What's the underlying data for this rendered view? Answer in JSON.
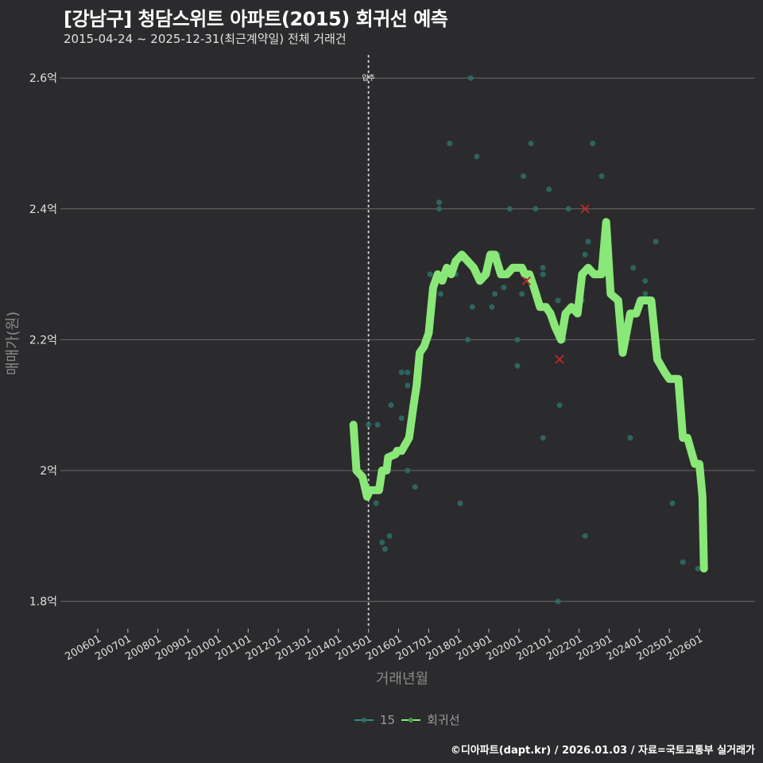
{
  "header": {
    "title": "[강남구] 청담스위트 아파트(2015) 회귀선 예측",
    "subtitle": "2015-04-24 ~ 2025-12-31(최근계약일) 전체 거래건"
  },
  "colors": {
    "background": "#2b2b2d",
    "grid": "#6a6a6a",
    "scatter": "#2e6e6a",
    "line": "#8ae878",
    "cross": "#c0282c",
    "vline": "#cfcfcf"
  },
  "annotation": {
    "label": "입주",
    "x": "201501"
  },
  "legend": {
    "items": [
      {
        "label": "15",
        "color": "#2e8a86"
      },
      {
        "label": "회귀선",
        "color": "#8ae878"
      }
    ]
  },
  "caption": "©디아파트(dapt.kr) / 2026.01.03 / 자료=국토교통부 실거래가",
  "chart_data": {
    "type": "line",
    "title": "[강남구] 청담스위트 아파트(2015) 회귀선 예측",
    "subtitle": "2015-04-24 ~ 2025-12-31(최근계약일) 전체 거래건",
    "xlabel": "거래년월",
    "ylabel": "매매가(원)",
    "ylim": [
      1.77,
      2.63
    ],
    "y_ticks": [
      {
        "value": 1.8,
        "label": "1.8억"
      },
      {
        "value": 2.0,
        "label": "2억"
      },
      {
        "value": 2.2,
        "label": "2.2억"
      },
      {
        "value": 2.4,
        "label": "2.4억"
      },
      {
        "value": 2.6,
        "label": "2.6억"
      }
    ],
    "x_ticks": [
      "200601",
      "200701",
      "200801",
      "200901",
      "201001",
      "201101",
      "201201",
      "201301",
      "201401",
      "201501",
      "201601",
      "201701",
      "201801",
      "201901",
      "202001",
      "202101",
      "202201",
      "202301",
      "202401",
      "202501",
      "202601"
    ],
    "grid": true,
    "legend_position": "bottom",
    "series": [
      {
        "name": "15",
        "type": "scatter",
        "unit": "억",
        "points": [
          [
            2015.0,
            2.07
          ],
          [
            2015.3,
            2.07
          ],
          [
            2015.25,
            1.95
          ],
          [
            2015.45,
            1.89
          ],
          [
            2015.55,
            1.88
          ],
          [
            2015.7,
            1.9
          ],
          [
            2015.75,
            2.1
          ],
          [
            2016.1,
            2.08
          ],
          [
            2016.1,
            2.15
          ],
          [
            2016.3,
            2.13
          ],
          [
            2016.3,
            2.15
          ],
          [
            2016.3,
            2.0
          ],
          [
            2016.55,
            1.975
          ],
          [
            2017.05,
            2.25
          ],
          [
            2017.05,
            2.3
          ],
          [
            2017.35,
            2.4
          ],
          [
            2017.35,
            2.41
          ],
          [
            2017.4,
            2.27
          ],
          [
            2017.7,
            2.5
          ],
          [
            2017.9,
            2.3
          ],
          [
            2018.05,
            1.95
          ],
          [
            2018.3,
            2.2
          ],
          [
            2018.4,
            2.6
          ],
          [
            2018.45,
            2.25
          ],
          [
            2018.6,
            2.48
          ],
          [
            2018.8,
            2.3
          ],
          [
            2019.1,
            2.25
          ],
          [
            2019.2,
            2.27
          ],
          [
            2019.3,
            2.33
          ],
          [
            2019.5,
            2.28
          ],
          [
            2019.7,
            2.4
          ],
          [
            2019.95,
            2.2
          ],
          [
            2019.95,
            2.16
          ],
          [
            2020.1,
            2.27
          ],
          [
            2020.15,
            2.45
          ],
          [
            2020.4,
            2.5
          ],
          [
            2020.55,
            2.4
          ],
          [
            2020.8,
            2.05
          ],
          [
            2020.8,
            2.31
          ],
          [
            2020.8,
            2.3
          ],
          [
            2021.0,
            2.43
          ],
          [
            2021.3,
            2.26
          ],
          [
            2021.3,
            1.8
          ],
          [
            2021.35,
            2.1
          ],
          [
            2021.5,
            2.2
          ],
          [
            2021.65,
            2.4
          ],
          [
            2022.1,
            2.26
          ],
          [
            2022.2,
            1.9
          ],
          [
            2022.2,
            2.33
          ],
          [
            2022.3,
            2.35
          ],
          [
            2022.45,
            2.5
          ],
          [
            2022.75,
            2.45
          ],
          [
            2023.7,
            2.05
          ],
          [
            2023.8,
            2.31
          ],
          [
            2024.2,
            2.27
          ],
          [
            2024.2,
            2.29
          ],
          [
            2024.55,
            2.35
          ],
          [
            2025.1,
            1.95
          ],
          [
            2025.45,
            1.86
          ],
          [
            2025.95,
            1.85
          ]
        ]
      },
      {
        "name": "회귀선",
        "type": "line",
        "unit": "억",
        "points": [
          [
            2014.5,
            2.07
          ],
          [
            2014.6,
            2.0
          ],
          [
            2014.8,
            1.99
          ],
          [
            2014.95,
            1.96
          ],
          [
            2015.05,
            1.97
          ],
          [
            2015.35,
            1.97
          ],
          [
            2015.45,
            2.0
          ],
          [
            2015.6,
            2.0
          ],
          [
            2015.65,
            2.02
          ],
          [
            2015.9,
            2.025
          ],
          [
            2015.95,
            2.03
          ],
          [
            2016.1,
            2.03
          ],
          [
            2016.35,
            2.05
          ],
          [
            2016.5,
            2.1
          ],
          [
            2016.6,
            2.13
          ],
          [
            2016.7,
            2.18
          ],
          [
            2016.85,
            2.19
          ],
          [
            2017.0,
            2.21
          ],
          [
            2017.15,
            2.28
          ],
          [
            2017.3,
            2.3
          ],
          [
            2017.45,
            2.29
          ],
          [
            2017.6,
            2.31
          ],
          [
            2017.75,
            2.3
          ],
          [
            2017.9,
            2.32
          ],
          [
            2018.1,
            2.33
          ],
          [
            2018.3,
            2.32
          ],
          [
            2018.5,
            2.31
          ],
          [
            2018.7,
            2.29
          ],
          [
            2018.9,
            2.3
          ],
          [
            2019.05,
            2.33
          ],
          [
            2019.2,
            2.33
          ],
          [
            2019.4,
            2.3
          ],
          [
            2019.6,
            2.3
          ],
          [
            2019.8,
            2.31
          ],
          [
            2020.1,
            2.31
          ],
          [
            2020.2,
            2.3
          ],
          [
            2020.35,
            2.3
          ],
          [
            2020.5,
            2.28
          ],
          [
            2020.7,
            2.25
          ],
          [
            2020.9,
            2.25
          ],
          [
            2021.05,
            2.24
          ],
          [
            2021.2,
            2.22
          ],
          [
            2021.4,
            2.2
          ],
          [
            2021.55,
            2.24
          ],
          [
            2021.75,
            2.25
          ],
          [
            2021.95,
            2.24
          ],
          [
            2022.1,
            2.3
          ],
          [
            2022.3,
            2.31
          ],
          [
            2022.5,
            2.3
          ],
          [
            2022.75,
            2.3
          ],
          [
            2022.9,
            2.38
          ],
          [
            2023.05,
            2.27
          ],
          [
            2023.3,
            2.26
          ],
          [
            2023.45,
            2.18
          ],
          [
            2023.7,
            2.24
          ],
          [
            2023.9,
            2.24
          ],
          [
            2024.05,
            2.26
          ],
          [
            2024.4,
            2.26
          ],
          [
            2024.6,
            2.17
          ],
          [
            2024.85,
            2.15
          ],
          [
            2025.0,
            2.14
          ],
          [
            2025.3,
            2.14
          ],
          [
            2025.45,
            2.05
          ],
          [
            2025.6,
            2.05
          ],
          [
            2025.85,
            2.01
          ],
          [
            2026.0,
            2.01
          ],
          [
            2026.1,
            1.96
          ],
          [
            2026.15,
            1.85
          ]
        ]
      }
    ],
    "highlighted_points": [
      [
        2020.25,
        2.29
      ],
      [
        2021.35,
        2.17
      ],
      [
        2022.2,
        2.4
      ]
    ]
  }
}
